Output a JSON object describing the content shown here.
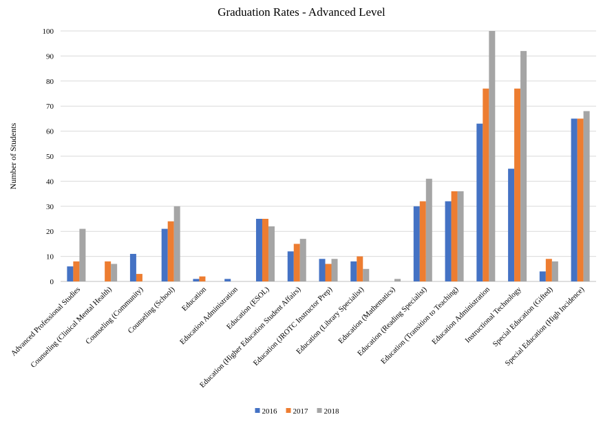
{
  "chart_data": {
    "type": "bar",
    "title": "Graduation Rates - Advanced Level",
    "xlabel": "",
    "ylabel": "Number of Students",
    "ylim": [
      0,
      100
    ],
    "yticks": [
      0,
      10,
      20,
      30,
      40,
      50,
      60,
      70,
      80,
      90,
      100
    ],
    "grid": true,
    "legend_position": "bottom",
    "categories": [
      "Advanced Professional Studies",
      "Counseling (Clinical Mental Health)",
      "Counseling (Community)",
      "Counseling (School)",
      "Education",
      "Education Administration",
      "Education (ESOL)",
      "Education (Higher Education Student Affairs)",
      "Education (JROTC Instructor Prep)",
      "Education (Library Specialist)",
      "Education (Mathematics)",
      "Education (Reading Specialist)",
      "Education (Transition to Teaching)",
      "Education Administration",
      "Instructional  Technology",
      "Special Education (Gifted)",
      "Special Education (High Incidence)"
    ],
    "series": [
      {
        "name": "2016",
        "color": "#4472C4",
        "values": [
          6,
          0,
          11,
          21,
          1,
          1,
          25,
          12,
          9,
          8,
          0,
          30,
          32,
          63,
          45,
          4,
          65
        ]
      },
      {
        "name": "2017",
        "color": "#ED7D31",
        "values": [
          8,
          8,
          3,
          24,
          2,
          0,
          25,
          15,
          7,
          10,
          0,
          32,
          36,
          77,
          77,
          9,
          65
        ]
      },
      {
        "name": "2018",
        "color": "#A5A5A5",
        "values": [
          21,
          7,
          0,
          30,
          0,
          0,
          22,
          17,
          9,
          5,
          1,
          41,
          36,
          100,
          92,
          8,
          68
        ]
      }
    ]
  }
}
